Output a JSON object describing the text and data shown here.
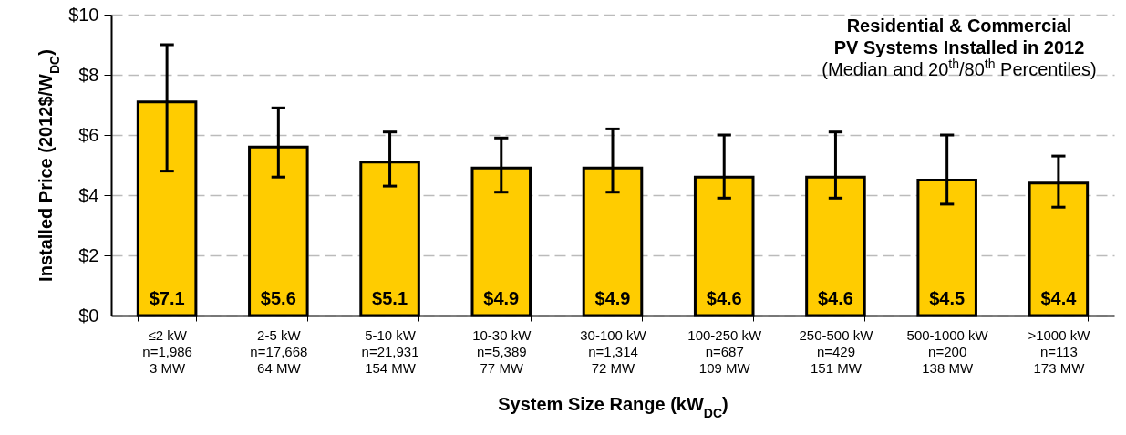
{
  "chart_data": {
    "type": "bar",
    "title": [
      "Residential & Commercial",
      "PV Systems Installed in 2012"
    ],
    "subtitle": "(Median and 20$^{th}$/80$^{th}$ Percentiles)",
    "xlabel": "System  Size Range  (kW$_{DC}$)",
    "ylabel": "Installed Price (2012$/W$_{DC}$)",
    "categories": [
      "≤2 kW\nn=1,986\n3 MW",
      "2-5 kW\nn=17,668\n64 MW",
      "5-10 kW\nn=21,931\n154 MW",
      "10-30 kW\nn=5,389\n77 MW",
      "30-100 kW\nn=1,314\n72 MW",
      "100-250 kW\nn=687\n109 MW",
      "250-500 kW\nn=429\n151 MW",
      "500-1000 kW\nn=200\n138 MW",
      ">1000 kW\nn=113\n173 MW"
    ],
    "values": [
      7.1,
      5.6,
      5.1,
      4.9,
      4.9,
      4.6,
      4.6,
      4.5,
      4.4
    ],
    "color": "#ffcc00",
    "errors": [
      [
        4.8,
        9.0
      ],
      [
        4.6,
        6.9
      ],
      [
        4.3,
        6.1
      ],
      [
        4.1,
        5.9
      ],
      [
        4.1,
        6.2
      ],
      [
        3.9,
        6.0
      ],
      [
        3.9,
        6.1
      ],
      [
        3.7,
        6.0
      ],
      [
        3.6,
        5.3
      ]
    ],
    "ylim": [
      0,
      10
    ],
    "yticks": [
      {
        "value": 0,
        "label": "$0"
      },
      {
        "value": 2,
        "label": "$2"
      },
      {
        "value": 4,
        "label": "$4"
      },
      {
        "value": 6,
        "label": "$6"
      },
      {
        "value": 8,
        "label": "$8"
      },
      {
        "value": 10,
        "label": "$10"
      }
    ],
    "value_labels": [
      "$7.1",
      "$5.6",
      "$5.1",
      "$4.9",
      "$4.9",
      "$4.6",
      "$4.6",
      "$4.5",
      "$4.4"
    ],
    "grid": "y"
  }
}
